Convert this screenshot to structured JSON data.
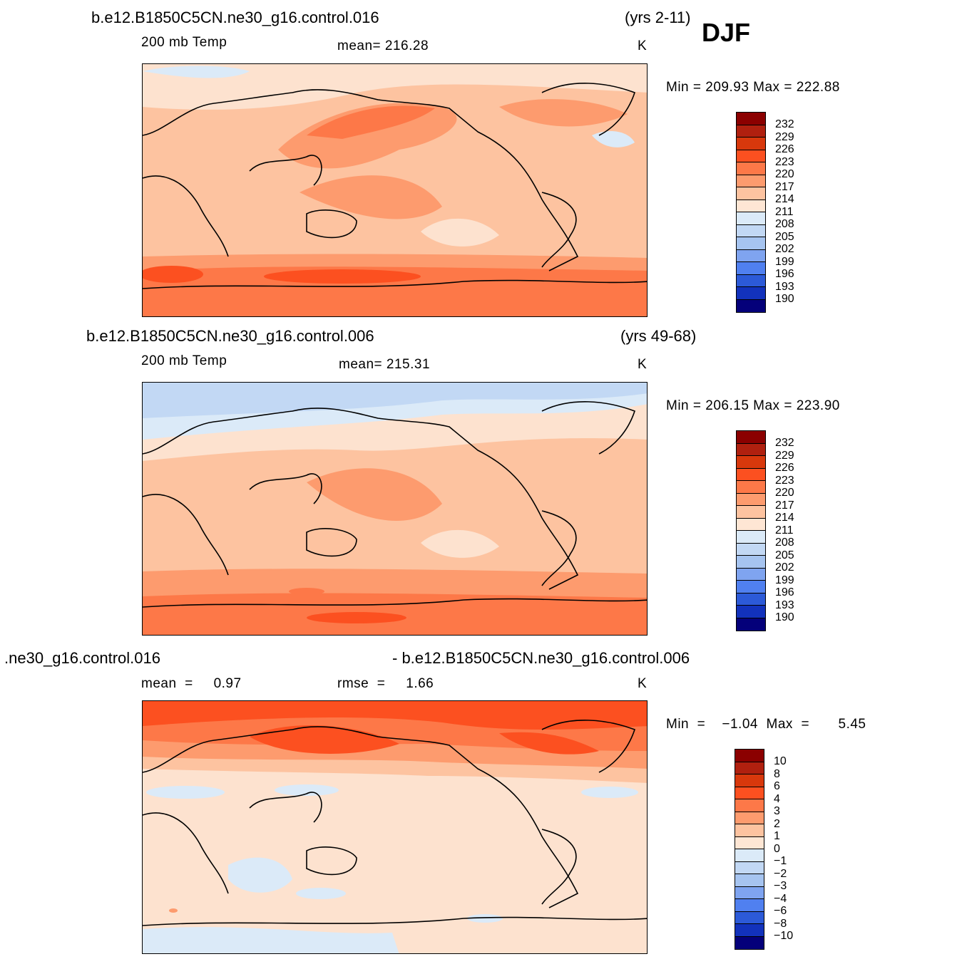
{
  "season": "DJF",
  "colors": {
    "abs_scale": [
      "#8b0000",
      "#b0200f",
      "#d8380c",
      "#fc5020",
      "#fd7848",
      "#fd9b6e",
      "#fdc3a0",
      "#fee6d4",
      "#dbeaf8",
      "#c2d8f4",
      "#a6c4f0",
      "#7fa4f0",
      "#5080f0",
      "#2c5ad8",
      "#1232bc",
      "#0a14a0",
      "#04007a"
    ],
    "diff_scale": [
      "#8b0000",
      "#b0200f",
      "#d8380c",
      "#fc5020",
      "#fd7848",
      "#fd9b6e",
      "#fdc3a0",
      "#fee6d4",
      "#dbeaf8",
      "#c2d8f4",
      "#a6c4f0",
      "#7fa4f0",
      "#5080f0",
      "#2c5ad8",
      "#1232bc",
      "#0a14a0",
      "#04007a"
    ]
  },
  "panels": [
    {
      "case": "b.e12.B1850C5CN.ne30_g16.control.016",
      "years": "(yrs 2-11)",
      "variable": "200  mb  Temp",
      "stat": "mean=  216.28",
      "units": "K",
      "minmax": "Min  =  209.93  Max  =  222.88",
      "bar_labels": [
        "232",
        "229",
        "226",
        "223",
        "220",
        "217",
        "214",
        "211",
        "208",
        "205",
        "202",
        "199",
        "196",
        "193",
        "190"
      ]
    },
    {
      "case": "b.e12.B1850C5CN.ne30_g16.control.006",
      "years": "(yrs 49-68)",
      "variable": "200  mb  Temp",
      "stat": "mean=  215.31",
      "units": "K",
      "minmax": "Min  =  206.15  Max  =  223.90",
      "bar_labels": [
        "232",
        "229",
        "226",
        "223",
        "220",
        "217",
        "214",
        "211",
        "208",
        "205",
        "202",
        "199",
        "196",
        "193",
        "190"
      ]
    },
    {
      "case": ".ne30_g16.control.016",
      "case_right": "- b.e12.B1850C5CN.ne30_g16.control.006",
      "stat_left": "mean  =     0.97",
      "stat": "rmse  =     1.66",
      "units": "K",
      "minmax": "Min  =    −1.04  Max  =       5.45",
      "bar_labels": [
        "10",
        "8",
        "6",
        "4",
        "3",
        "2",
        "1",
        "0",
        "−1",
        "−2",
        "−3",
        "−4",
        "−6",
        "−8",
        "−10"
      ]
    }
  ]
}
